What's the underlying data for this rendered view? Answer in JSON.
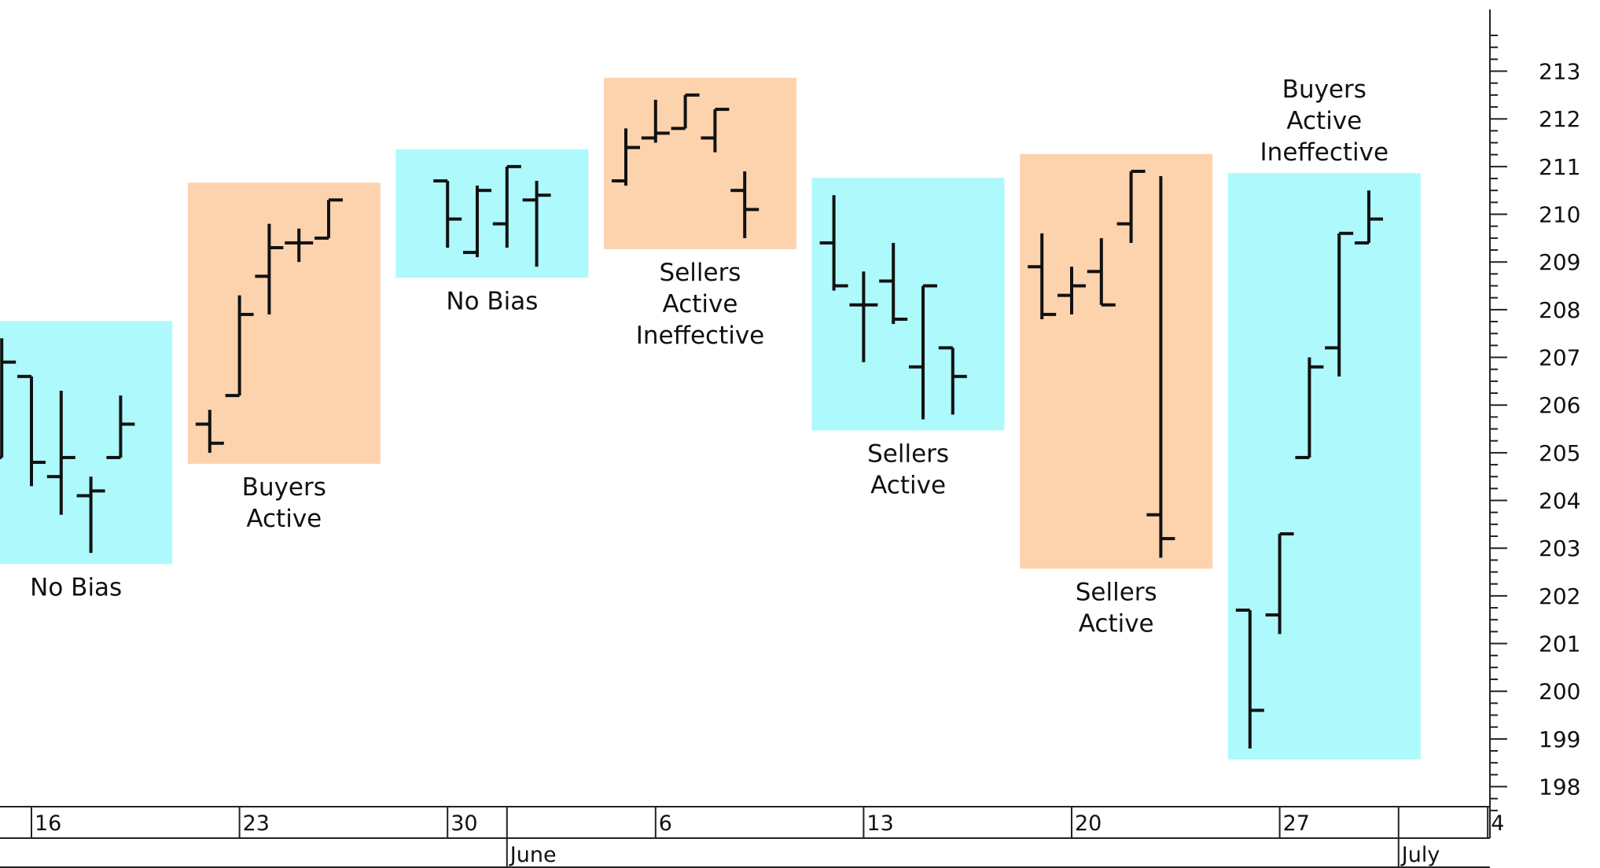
{
  "chart_data": {
    "type": "bar-ohlc",
    "title": "",
    "xlabel": "",
    "ylabel": "",
    "ylim": [
      197.3,
      213.8
    ],
    "y_ticks": [
      198,
      199,
      200,
      201,
      202,
      203,
      204,
      205,
      206,
      207,
      208,
      209,
      210,
      211,
      212,
      213
    ],
    "y_axis_position": "right",
    "grid": false,
    "legend": "none",
    "x_ticks": [
      "16",
      "23",
      "30",
      "6",
      "13",
      "20",
      "27",
      "4"
    ],
    "month_labels": [
      "June",
      "July"
    ],
    "colors": {
      "buyers_zone": "#FDD3AE",
      "no_bias_zone": "#AEF9FC",
      "bar": "#111111",
      "axis": "#222222"
    },
    "zones": [
      {
        "label": "No Bias",
        "color": "no_bias_zone",
        "from": "May 15",
        "to": "May 20"
      },
      {
        "label": "Buyers Active",
        "color": "buyers_zone",
        "from": "May 22",
        "to": "May 27"
      },
      {
        "label": "No Bias",
        "color": "no_bias_zone",
        "from": "May 29",
        "to": "Jun 3"
      },
      {
        "label": "Sellers Active Ineffective",
        "color": "buyers_zone",
        "from": "Jun 5",
        "to": "Jun 10"
      },
      {
        "label": "Sellers Active",
        "color": "no_bias_zone",
        "from": "Jun 12",
        "to": "Jun 17"
      },
      {
        "label": "Sellers Active",
        "color": "buyers_zone",
        "from": "Jun 19",
        "to": "Jun 24"
      },
      {
        "label": "Buyers Active Ineffective",
        "color": "no_bias_zone",
        "from": "Jun 26",
        "to": "Jul 1"
      }
    ],
    "bars": [
      {
        "date": "May 15",
        "open": 204.9,
        "high": 207.4,
        "low": 204.9,
        "close": 206.9
      },
      {
        "date": "May 16",
        "open": 206.6,
        "high": 206.6,
        "low": 204.3,
        "close": 204.8
      },
      {
        "date": "May 17",
        "open": 204.5,
        "high": 206.3,
        "low": 203.7,
        "close": 204.9
      },
      {
        "date": "May 18",
        "open": 204.1,
        "high": 204.5,
        "low": 202.9,
        "close": 204.2
      },
      {
        "date": "May 19",
        "open": 204.9,
        "high": 206.2,
        "low": 204.9,
        "close": 205.6
      },
      {
        "date": "May 22",
        "open": 205.6,
        "high": 205.9,
        "low": 205.0,
        "close": 205.2
      },
      {
        "date": "May 23",
        "open": 206.2,
        "high": 208.3,
        "low": 206.2,
        "close": 207.9
      },
      {
        "date": "May 24",
        "open": 208.7,
        "high": 209.8,
        "low": 207.9,
        "close": 209.3
      },
      {
        "date": "May 25",
        "open": 209.4,
        "high": 209.7,
        "low": 209.0,
        "close": 209.4
      },
      {
        "date": "May 26",
        "open": 209.5,
        "high": 210.3,
        "low": 209.5,
        "close": 210.3
      },
      {
        "date": "May 30",
        "open": 210.7,
        "high": 210.7,
        "low": 209.3,
        "close": 209.9
      },
      {
        "date": "May 31",
        "open": 209.2,
        "high": 210.6,
        "low": 209.1,
        "close": 210.5
      },
      {
        "date": "Jun 1",
        "open": 209.8,
        "high": 211.0,
        "low": 209.3,
        "close": 211.0
      },
      {
        "date": "Jun 2",
        "open": 210.3,
        "high": 210.7,
        "low": 208.9,
        "close": 210.4
      },
      {
        "date": "Jun 5",
        "open": 210.7,
        "high": 211.8,
        "low": 210.6,
        "close": 211.4
      },
      {
        "date": "Jun 6",
        "open": 211.6,
        "high": 212.4,
        "low": 211.5,
        "close": 211.7
      },
      {
        "date": "Jun 7",
        "open": 211.8,
        "high": 212.5,
        "low": 211.8,
        "close": 212.5
      },
      {
        "date": "Jun 8",
        "open": 211.6,
        "high": 212.2,
        "low": 211.3,
        "close": 212.2
      },
      {
        "date": "Jun 9",
        "open": 210.5,
        "high": 210.9,
        "low": 209.5,
        "close": 210.1
      },
      {
        "date": "Jun 12",
        "open": 209.4,
        "high": 210.4,
        "low": 208.4,
        "close": 208.5
      },
      {
        "date": "Jun 13",
        "open": 208.1,
        "high": 208.8,
        "low": 206.9,
        "close": 208.1
      },
      {
        "date": "Jun 14",
        "open": 208.6,
        "high": 209.4,
        "low": 207.7,
        "close": 207.8
      },
      {
        "date": "Jun 15",
        "open": 206.8,
        "high": 208.5,
        "low": 205.7,
        "close": 208.5
      },
      {
        "date": "Jun 16",
        "open": 207.2,
        "high": 207.2,
        "low": 205.8,
        "close": 206.6
      },
      {
        "date": "Jun 19",
        "open": 208.9,
        "high": 209.6,
        "low": 207.8,
        "close": 207.9
      },
      {
        "date": "Jun 20",
        "open": 208.3,
        "high": 208.9,
        "low": 207.9,
        "close": 208.5
      },
      {
        "date": "Jun 21",
        "open": 208.8,
        "high": 209.5,
        "low": 208.1,
        "close": 208.1
      },
      {
        "date": "Jun 22",
        "open": 209.8,
        "high": 210.9,
        "low": 209.4,
        "close": 210.9
      },
      {
        "date": "Jun 23",
        "open": 203.7,
        "high": 210.8,
        "low": 202.8,
        "close": 203.2
      },
      {
        "date": "Jun 26",
        "open": 201.7,
        "high": 201.7,
        "low": 198.8,
        "close": 199.6
      },
      {
        "date": "Jun 27",
        "open": 201.6,
        "high": 203.3,
        "low": 201.2,
        "close": 203.3
      },
      {
        "date": "Jun 28",
        "open": 204.9,
        "high": 207.0,
        "low": 204.9,
        "close": 206.8
      },
      {
        "date": "Jun 29",
        "open": 207.2,
        "high": 209.6,
        "low": 206.6,
        "close": 209.6
      },
      {
        "date": "Jun 30",
        "open": 209.4,
        "high": 210.5,
        "low": 209.4,
        "close": 209.9
      }
    ]
  }
}
